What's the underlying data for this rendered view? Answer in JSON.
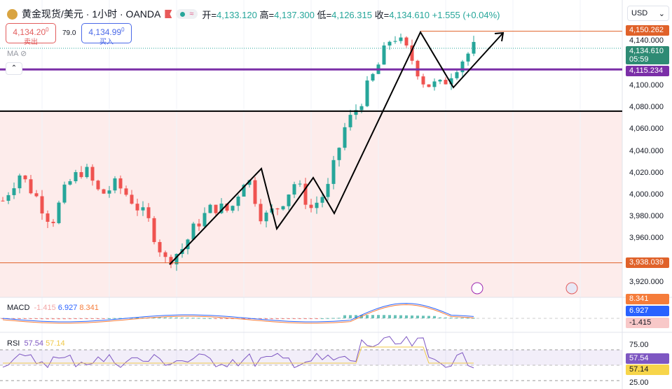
{
  "header": {
    "symbol": "黄金现货/美元 · 1小时 · OANDA",
    "open_label": "开=",
    "open": "4,133.120",
    "high_label": "高=",
    "high": "4,137.300",
    "low_label": "低=",
    "low": "4,126.315",
    "close_label": "收=",
    "close": "4,134.610",
    "change": "+1.555 (+0.04%)",
    "pill_icon": "≈"
  },
  "trade": {
    "sell_price": "4,134.20",
    "sell_sup": "0",
    "sell_label": "卖出",
    "spread": "79.0",
    "buy_price": "4,134.99",
    "buy_sup": "0",
    "buy_label": "买入"
  },
  "indicators": {
    "ma": "MA"
  },
  "currency": "USD",
  "price_axis": {
    "ticks": [
      "4,140.000",
      "4,100.000",
      "4,080.000",
      "4,060.000",
      "4,040.000",
      "4,020.000",
      "4,000.000",
      "3,980.000",
      "3,960.000",
      "3,920.000"
    ],
    "tick_values": [
      4140,
      4100,
      4080,
      4060,
      4040,
      4020,
      4000,
      3980,
      3960,
      3920
    ],
    "labels": {
      "resistance": "4,150.262",
      "current": "4,134.610",
      "countdown": "05:59",
      "purple": "4,115.234",
      "support": "3,938.039"
    }
  },
  "levels": {
    "resistance": 4150.262,
    "current": 4134.61,
    "purple": 4115.234,
    "black": 4077,
    "support": 3938.039
  },
  "macd": {
    "name": "MACD",
    "hist": "-1.415",
    "macd": "6.927",
    "signal": "8.341"
  },
  "rsi": {
    "name": "RSI",
    "value": "57.54",
    "ma": "57.14",
    "upper": "75.00",
    "lower": "25.00"
  },
  "colors": {
    "up": "#26a69a",
    "down": "#ef5350",
    "purple": "#7b2fa8",
    "orange": "#e0622a",
    "zone": "#fdeceb"
  },
  "price_path": [
    3995,
    4020,
    4000,
    3975,
    4010,
    4025,
    4000,
    4010,
    3995,
    3975,
    3940,
    3950,
    3975,
    3990,
    3985,
    4020,
    3978,
    3990,
    4012,
    3988,
    4005,
    4060,
    4085,
    4115,
    4148,
    4130,
    4102,
    4100,
    4120,
    4135
  ]
}
